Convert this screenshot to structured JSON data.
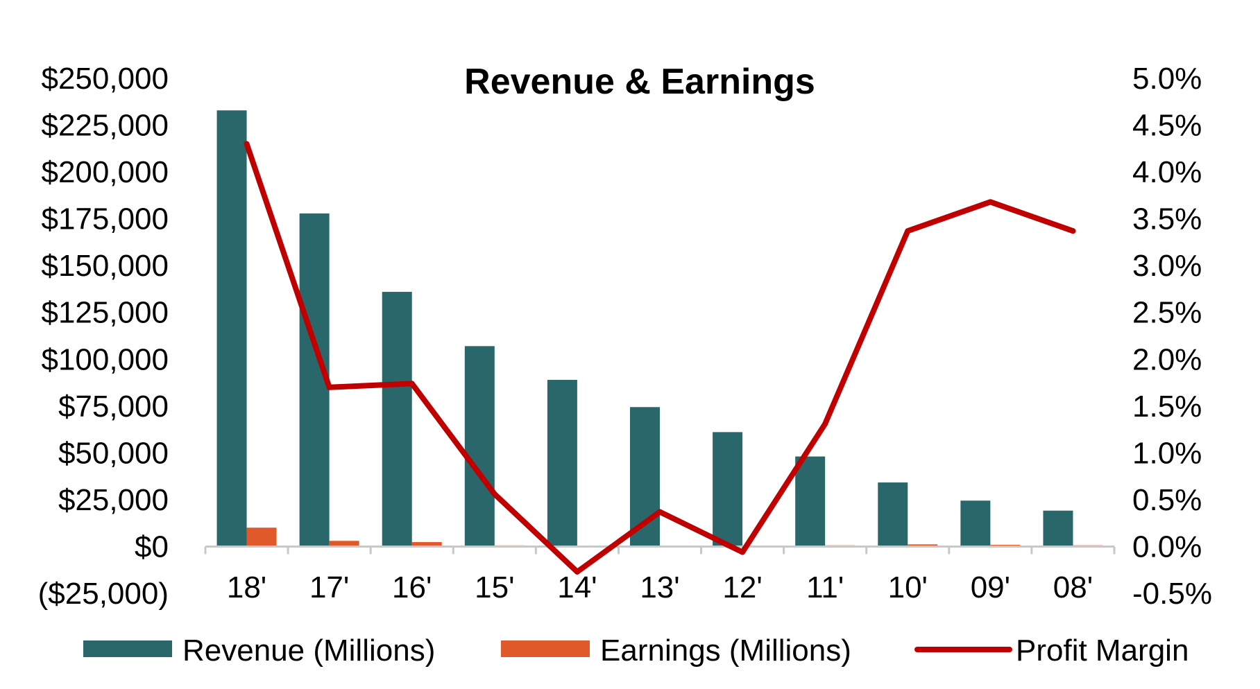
{
  "chart_data": {
    "type": "bar",
    "title": "Revenue & Earnings",
    "categories": [
      "18'",
      "17'",
      "16'",
      "15'",
      "14'",
      "13'",
      "12'",
      "11'",
      "10'",
      "09'",
      "08'"
    ],
    "series": [
      {
        "name": "Revenue (Millions)",
        "type": "bar",
        "axis": "left",
        "color": "#29676b",
        "values": [
          232887,
          177866,
          135987,
          107006,
          88988,
          74452,
          61093,
          48077,
          34204,
          24509,
          19166
        ]
      },
      {
        "name": "Earnings (Millions)",
        "type": "bar",
        "axis": "left",
        "color": "#e0592a",
        "values": [
          10073,
          3033,
          2371,
          596,
          -241,
          274,
          -39,
          631,
          1152,
          902,
          645
        ]
      },
      {
        "name": "Profit Margin",
        "type": "line",
        "axis": "right",
        "color": "#c00000",
        "values": [
          4.3,
          1.7,
          1.74,
          0.56,
          -0.27,
          0.37,
          -0.06,
          1.31,
          3.37,
          3.68,
          3.37
        ]
      }
    ],
    "left_axis": {
      "ylim": [
        -25000,
        250000
      ],
      "ticks": [
        250000,
        225000,
        200000,
        175000,
        150000,
        125000,
        100000,
        75000,
        50000,
        25000,
        0,
        -25000
      ],
      "tick_labels": [
        "$250,000",
        "$225,000",
        "$200,000",
        "$175,000",
        "$150,000",
        "$125,000",
        "$100,000",
        "$75,000",
        "$50,000",
        "$25,000",
        "$0",
        "($25,000)"
      ]
    },
    "right_axis": {
      "ylim": [
        -0.5,
        5.0
      ],
      "ticks": [
        5.0,
        4.5,
        4.0,
        3.5,
        3.0,
        2.5,
        2.0,
        1.5,
        1.0,
        0.5,
        0.0,
        -0.5
      ],
      "tick_labels": [
        "5.0%",
        "4.5%",
        "4.0%",
        "3.5%",
        "3.0%",
        "2.5%",
        "2.0%",
        "1.5%",
        "1.0%",
        "0.5%",
        "0.0%",
        "-0.5%"
      ]
    },
    "grid": false,
    "legend_position": "bottom",
    "legend": [
      "Revenue (Millions)",
      "Earnings (Millions)",
      "Profit Margin"
    ]
  }
}
